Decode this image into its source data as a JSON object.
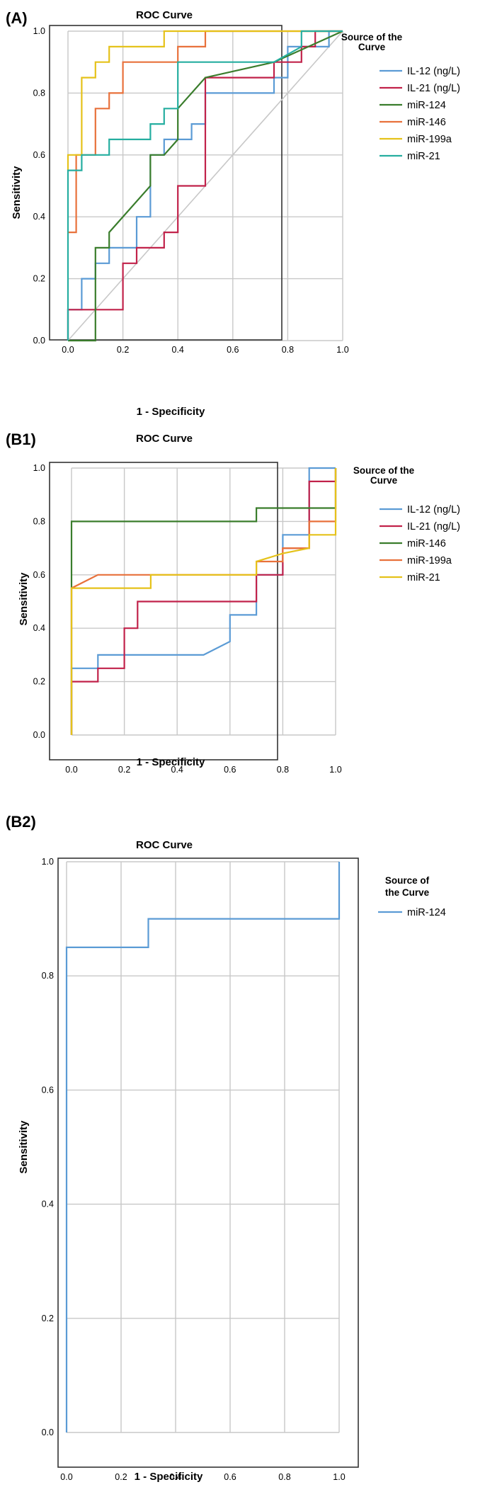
{
  "chart_data": [
    {
      "panel": "(A)",
      "type": "line",
      "title": "ROC Curve",
      "xlabel": "1 - Specificity",
      "ylabel": "Sensitivity",
      "xlim": [
        0,
        1
      ],
      "ylim": [
        0,
        1
      ],
      "xticks": [
        "0.0",
        "0.2",
        "0.4",
        "0.6",
        "0.8",
        "1.0"
      ],
      "yticks": [
        "0.0",
        "0.2",
        "0.4",
        "0.6",
        "0.8",
        "1.0"
      ],
      "grid": true,
      "reference_line": true,
      "legend_title": [
        "Source of the",
        "Curve"
      ],
      "legend_position": "right",
      "series": [
        {
          "name": "IL-12 (ng/L)",
          "color": "#5b9bd5",
          "points": [
            [
              0,
              0
            ],
            [
              0,
              0.1
            ],
            [
              0.05,
              0.1
            ],
            [
              0.05,
              0.2
            ],
            [
              0.1,
              0.2
            ],
            [
              0.1,
              0.25
            ],
            [
              0.15,
              0.25
            ],
            [
              0.15,
              0.3
            ],
            [
              0.25,
              0.3
            ],
            [
              0.25,
              0.4
            ],
            [
              0.3,
              0.4
            ],
            [
              0.3,
              0.6
            ],
            [
              0.35,
              0.6
            ],
            [
              0.35,
              0.65
            ],
            [
              0.45,
              0.65
            ],
            [
              0.45,
              0.7
            ],
            [
              0.5,
              0.7
            ],
            [
              0.5,
              0.8
            ],
            [
              0.75,
              0.8
            ],
            [
              0.75,
              0.85
            ],
            [
              0.8,
              0.85
            ],
            [
              0.8,
              0.95
            ],
            [
              0.95,
              0.95
            ],
            [
              0.95,
              1
            ],
            [
              1,
              1
            ]
          ]
        },
        {
          "name": "IL-21 (ng/L)",
          "color": "#c1224a",
          "points": [
            [
              0,
              0
            ],
            [
              0,
              0.1
            ],
            [
              0.2,
              0.1
            ],
            [
              0.2,
              0.25
            ],
            [
              0.25,
              0.25
            ],
            [
              0.25,
              0.3
            ],
            [
              0.35,
              0.3
            ],
            [
              0.35,
              0.35
            ],
            [
              0.4,
              0.35
            ],
            [
              0.4,
              0.5
            ],
            [
              0.5,
              0.5
            ],
            [
              0.5,
              0.85
            ],
            [
              0.75,
              0.85
            ],
            [
              0.75,
              0.9
            ],
            [
              0.85,
              0.9
            ],
            [
              0.85,
              0.95
            ],
            [
              0.9,
              0.95
            ],
            [
              0.9,
              1
            ],
            [
              1,
              1
            ]
          ]
        },
        {
          "name": "miR-124",
          "color": "#3a7d2c",
          "points": [
            [
              0,
              0
            ],
            [
              0.1,
              0
            ],
            [
              0.1,
              0.3
            ],
            [
              0.15,
              0.3
            ],
            [
              0.15,
              0.35
            ],
            [
              0.3,
              0.5
            ],
            [
              0.3,
              0.6
            ],
            [
              0.35,
              0.6
            ],
            [
              0.4,
              0.65
            ],
            [
              0.4,
              0.75
            ],
            [
              0.5,
              0.85
            ],
            [
              0.75,
              0.9
            ],
            [
              1,
              1
            ]
          ]
        },
        {
          "name": "miR-146",
          "color": "#e8713b",
          "points": [
            [
              0,
              0.35
            ],
            [
              0.03,
              0.35
            ],
            [
              0.03,
              0.6
            ],
            [
              0.1,
              0.6
            ],
            [
              0.1,
              0.75
            ],
            [
              0.15,
              0.75
            ],
            [
              0.15,
              0.8
            ],
            [
              0.2,
              0.8
            ],
            [
              0.2,
              0.9
            ],
            [
              0.4,
              0.9
            ],
            [
              0.4,
              0.95
            ],
            [
              0.5,
              0.95
            ],
            [
              0.5,
              1
            ],
            [
              1,
              1
            ]
          ]
        },
        {
          "name": "miR-199a",
          "color": "#e5c21a",
          "points": [
            [
              0,
              0.55
            ],
            [
              0,
              0.6
            ],
            [
              0.05,
              0.6
            ],
            [
              0.05,
              0.85
            ],
            [
              0.1,
              0.85
            ],
            [
              0.1,
              0.9
            ],
            [
              0.15,
              0.9
            ],
            [
              0.15,
              0.95
            ],
            [
              0.35,
              0.95
            ],
            [
              0.35,
              1
            ],
            [
              1,
              1
            ]
          ]
        },
        {
          "name": "miR-21",
          "color": "#26aea0",
          "points": [
            [
              0,
              0
            ],
            [
              0,
              0.55
            ],
            [
              0.05,
              0.55
            ],
            [
              0.05,
              0.6
            ],
            [
              0.15,
              0.6
            ],
            [
              0.15,
              0.65
            ],
            [
              0.3,
              0.65
            ],
            [
              0.3,
              0.7
            ],
            [
              0.35,
              0.7
            ],
            [
              0.35,
              0.75
            ],
            [
              0.4,
              0.75
            ],
            [
              0.4,
              0.9
            ],
            [
              0.75,
              0.9
            ],
            [
              0.85,
              0.95
            ],
            [
              0.85,
              1
            ],
            [
              1,
              1
            ]
          ]
        }
      ]
    },
    {
      "panel": "(B1)",
      "type": "line",
      "title": "ROC Curve",
      "xlabel": "1 - Specificity",
      "ylabel": "Sensitivity",
      "xlim": [
        0,
        1
      ],
      "ylim": [
        0,
        1
      ],
      "xticks": [
        "0.0",
        "0.2",
        "0.4",
        "0.6",
        "0.8",
        "1.0"
      ],
      "yticks": [
        "0.0",
        "0.2",
        "0.4",
        "0.6",
        "0.8",
        "1.0"
      ],
      "grid": true,
      "reference_line": false,
      "legend_title": [
        "Source of the",
        "Curve"
      ],
      "legend_position": "right",
      "series": [
        {
          "name": "IL-12 (ng/L)",
          "color": "#5b9bd5",
          "points": [
            [
              0,
              0
            ],
            [
              0,
              0.25
            ],
            [
              0.1,
              0.25
            ],
            [
              0.1,
              0.3
            ],
            [
              0.5,
              0.3
            ],
            [
              0.6,
              0.35
            ],
            [
              0.6,
              0.45
            ],
            [
              0.7,
              0.45
            ],
            [
              0.7,
              0.6
            ],
            [
              0.8,
              0.6
            ],
            [
              0.8,
              0.75
            ],
            [
              0.9,
              0.75
            ],
            [
              0.9,
              1
            ],
            [
              1,
              1
            ]
          ]
        },
        {
          "name": "IL-21 (ng/L)",
          "color": "#c1224a",
          "points": [
            [
              0,
              0
            ],
            [
              0,
              0.2
            ],
            [
              0.1,
              0.2
            ],
            [
              0.1,
              0.25
            ],
            [
              0.2,
              0.25
            ],
            [
              0.2,
              0.4
            ],
            [
              0.25,
              0.4
            ],
            [
              0.25,
              0.5
            ],
            [
              0.6,
              0.5
            ],
            [
              0.7,
              0.5
            ],
            [
              0.7,
              0.6
            ],
            [
              0.8,
              0.6
            ],
            [
              0.8,
              0.7
            ],
            [
              0.9,
              0.7
            ],
            [
              0.9,
              0.95
            ],
            [
              1,
              0.95
            ],
            [
              1,
              1
            ]
          ]
        },
        {
          "name": "miR-146",
          "color": "#3a7d2c",
          "points": [
            [
              0,
              0
            ],
            [
              0,
              0.8
            ],
            [
              0.7,
              0.8
            ],
            [
              0.7,
              0.85
            ],
            [
              1,
              0.85
            ],
            [
              1,
              1
            ]
          ]
        },
        {
          "name": "miR-199a",
          "color": "#e8713b",
          "points": [
            [
              0,
              0
            ],
            [
              0,
              0.55
            ],
            [
              0.1,
              0.6
            ],
            [
              0.7,
              0.6
            ],
            [
              0.7,
              0.65
            ],
            [
              0.8,
              0.65
            ],
            [
              0.8,
              0.7
            ],
            [
              0.9,
              0.7
            ],
            [
              0.9,
              0.8
            ],
            [
              1,
              0.8
            ],
            [
              1,
              1
            ]
          ]
        },
        {
          "name": "miR-21",
          "color": "#e5c21a",
          "points": [
            [
              0,
              0
            ],
            [
              0,
              0.55
            ],
            [
              0.3,
              0.55
            ],
            [
              0.3,
              0.6
            ],
            [
              0.7,
              0.6
            ],
            [
              0.7,
              0.65
            ],
            [
              0.8,
              0.68
            ],
            [
              0.9,
              0.7
            ],
            [
              0.9,
              0.75
            ],
            [
              1,
              0.75
            ],
            [
              1,
              1
            ]
          ]
        }
      ]
    },
    {
      "panel": "(B2)",
      "type": "line",
      "title": "ROC Curve",
      "xlabel": "1 - Specificity",
      "ylabel": "Sensitivity",
      "xlim": [
        0,
        1
      ],
      "ylim": [
        0,
        1
      ],
      "xticks": [
        "0.0",
        "0.2",
        "0.4",
        "0.6",
        "0.8",
        "1.0"
      ],
      "yticks": [
        "0.0",
        "0.2",
        "0.4",
        "0.6",
        "0.8",
        "1.0"
      ],
      "grid": true,
      "reference_line": false,
      "legend_title": [
        "Source of",
        "the Curve"
      ],
      "legend_position": "right",
      "series": [
        {
          "name": "miR-124",
          "color": "#5b9bd5",
          "points": [
            [
              0,
              0
            ],
            [
              0,
              0.85
            ],
            [
              0.3,
              0.85
            ],
            [
              0.3,
              0.9
            ],
            [
              1,
              0.9
            ],
            [
              1,
              1
            ]
          ]
        }
      ]
    }
  ]
}
